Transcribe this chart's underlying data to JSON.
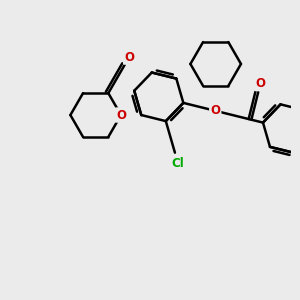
{
  "bg_color": "#ebebeb",
  "bond_color": "#000000",
  "oxygen_color": "#cc0000",
  "chlorine_color": "#00aa00",
  "lw": 1.8,
  "figsize": [
    3.0,
    3.0
  ],
  "dpi": 100,
  "xlim": [
    -3.8,
    5.2
  ],
  "ylim": [
    -5.0,
    4.5
  ]
}
